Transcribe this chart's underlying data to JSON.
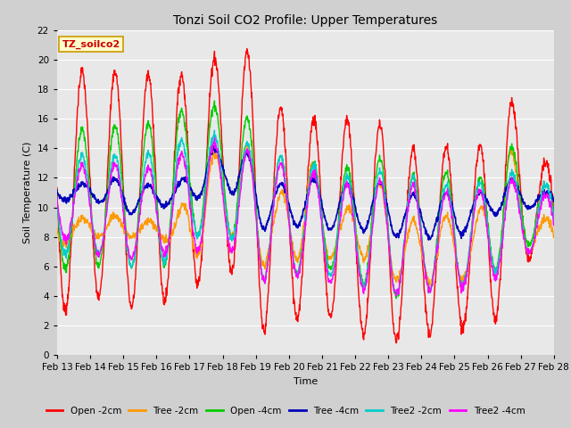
{
  "title": "Tonzi Soil CO2 Profile: Upper Temperatures",
  "xlabel": "Time",
  "ylabel": "Soil Temperature (C)",
  "ylim": [
    0,
    22
  ],
  "watermark": "TZ_soilco2",
  "series": [
    {
      "label": "Open -2cm",
      "color": "#ff0000"
    },
    {
      "label": "Tree -2cm",
      "color": "#ff9900"
    },
    {
      "label": "Open -4cm",
      "color": "#00cc00"
    },
    {
      "label": "Tree -4cm",
      "color": "#0000bb"
    },
    {
      "label": "Tree2 -2cm",
      "color": "#00cccc"
    },
    {
      "label": "Tree2 -4cm",
      "color": "#ff00ff"
    }
  ],
  "xtick_labels": [
    "Feb 13",
    "Feb 14",
    "Feb 15",
    "Feb 16",
    "Feb 17",
    "Feb 18",
    "Feb 19",
    "Feb 20",
    "Feb 21",
    "Feb 22",
    "Feb 23",
    "Feb 24",
    "Feb 25",
    "Feb 26",
    "Feb 27",
    "Feb 28"
  ],
  "n_days": 15,
  "pts_per_day": 96
}
